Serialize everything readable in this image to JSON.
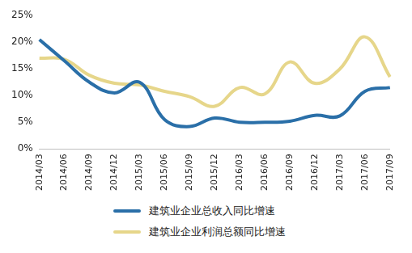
{
  "chart_data": {
    "type": "line",
    "categories": [
      "2014/03",
      "2014/06",
      "2014/09",
      "2014/12",
      "2015/03",
      "2015/06",
      "2015/09",
      "2015/12",
      "2016/03",
      "2016/06",
      "2016/09",
      "2016/12",
      "2017/03",
      "2017/06",
      "2017/09"
    ],
    "series": [
      {
        "name": "建筑业企业总收入同比增速",
        "color": "#2a6fa8",
        "values": [
          20.5,
          16.5,
          12.5,
          10.5,
          12.5,
          5.5,
          4.2,
          5.8,
          5.0,
          5.0,
          5.2,
          6.3,
          6.2,
          10.8,
          11.5
        ]
      },
      {
        "name": "建筑业企业利润总额同比增速",
        "color": "#e6d68a",
        "values": [
          17.0,
          16.8,
          13.8,
          12.3,
          12.0,
          10.8,
          9.8,
          8.0,
          11.5,
          10.3,
          16.3,
          12.3,
          15.0,
          21.0,
          13.5
        ]
      }
    ],
    "ylim": [
      0,
      25
    ],
    "yticks": [
      {
        "value": 0,
        "label": "0%"
      },
      {
        "value": 5,
        "label": "5%"
      },
      {
        "value": 10,
        "label": "10%"
      },
      {
        "value": 15,
        "label": "15%"
      },
      {
        "value": 20,
        "label": "20%"
      },
      {
        "value": 25,
        "label": "25%"
      }
    ],
    "grid": false,
    "legend": "bottom"
  }
}
